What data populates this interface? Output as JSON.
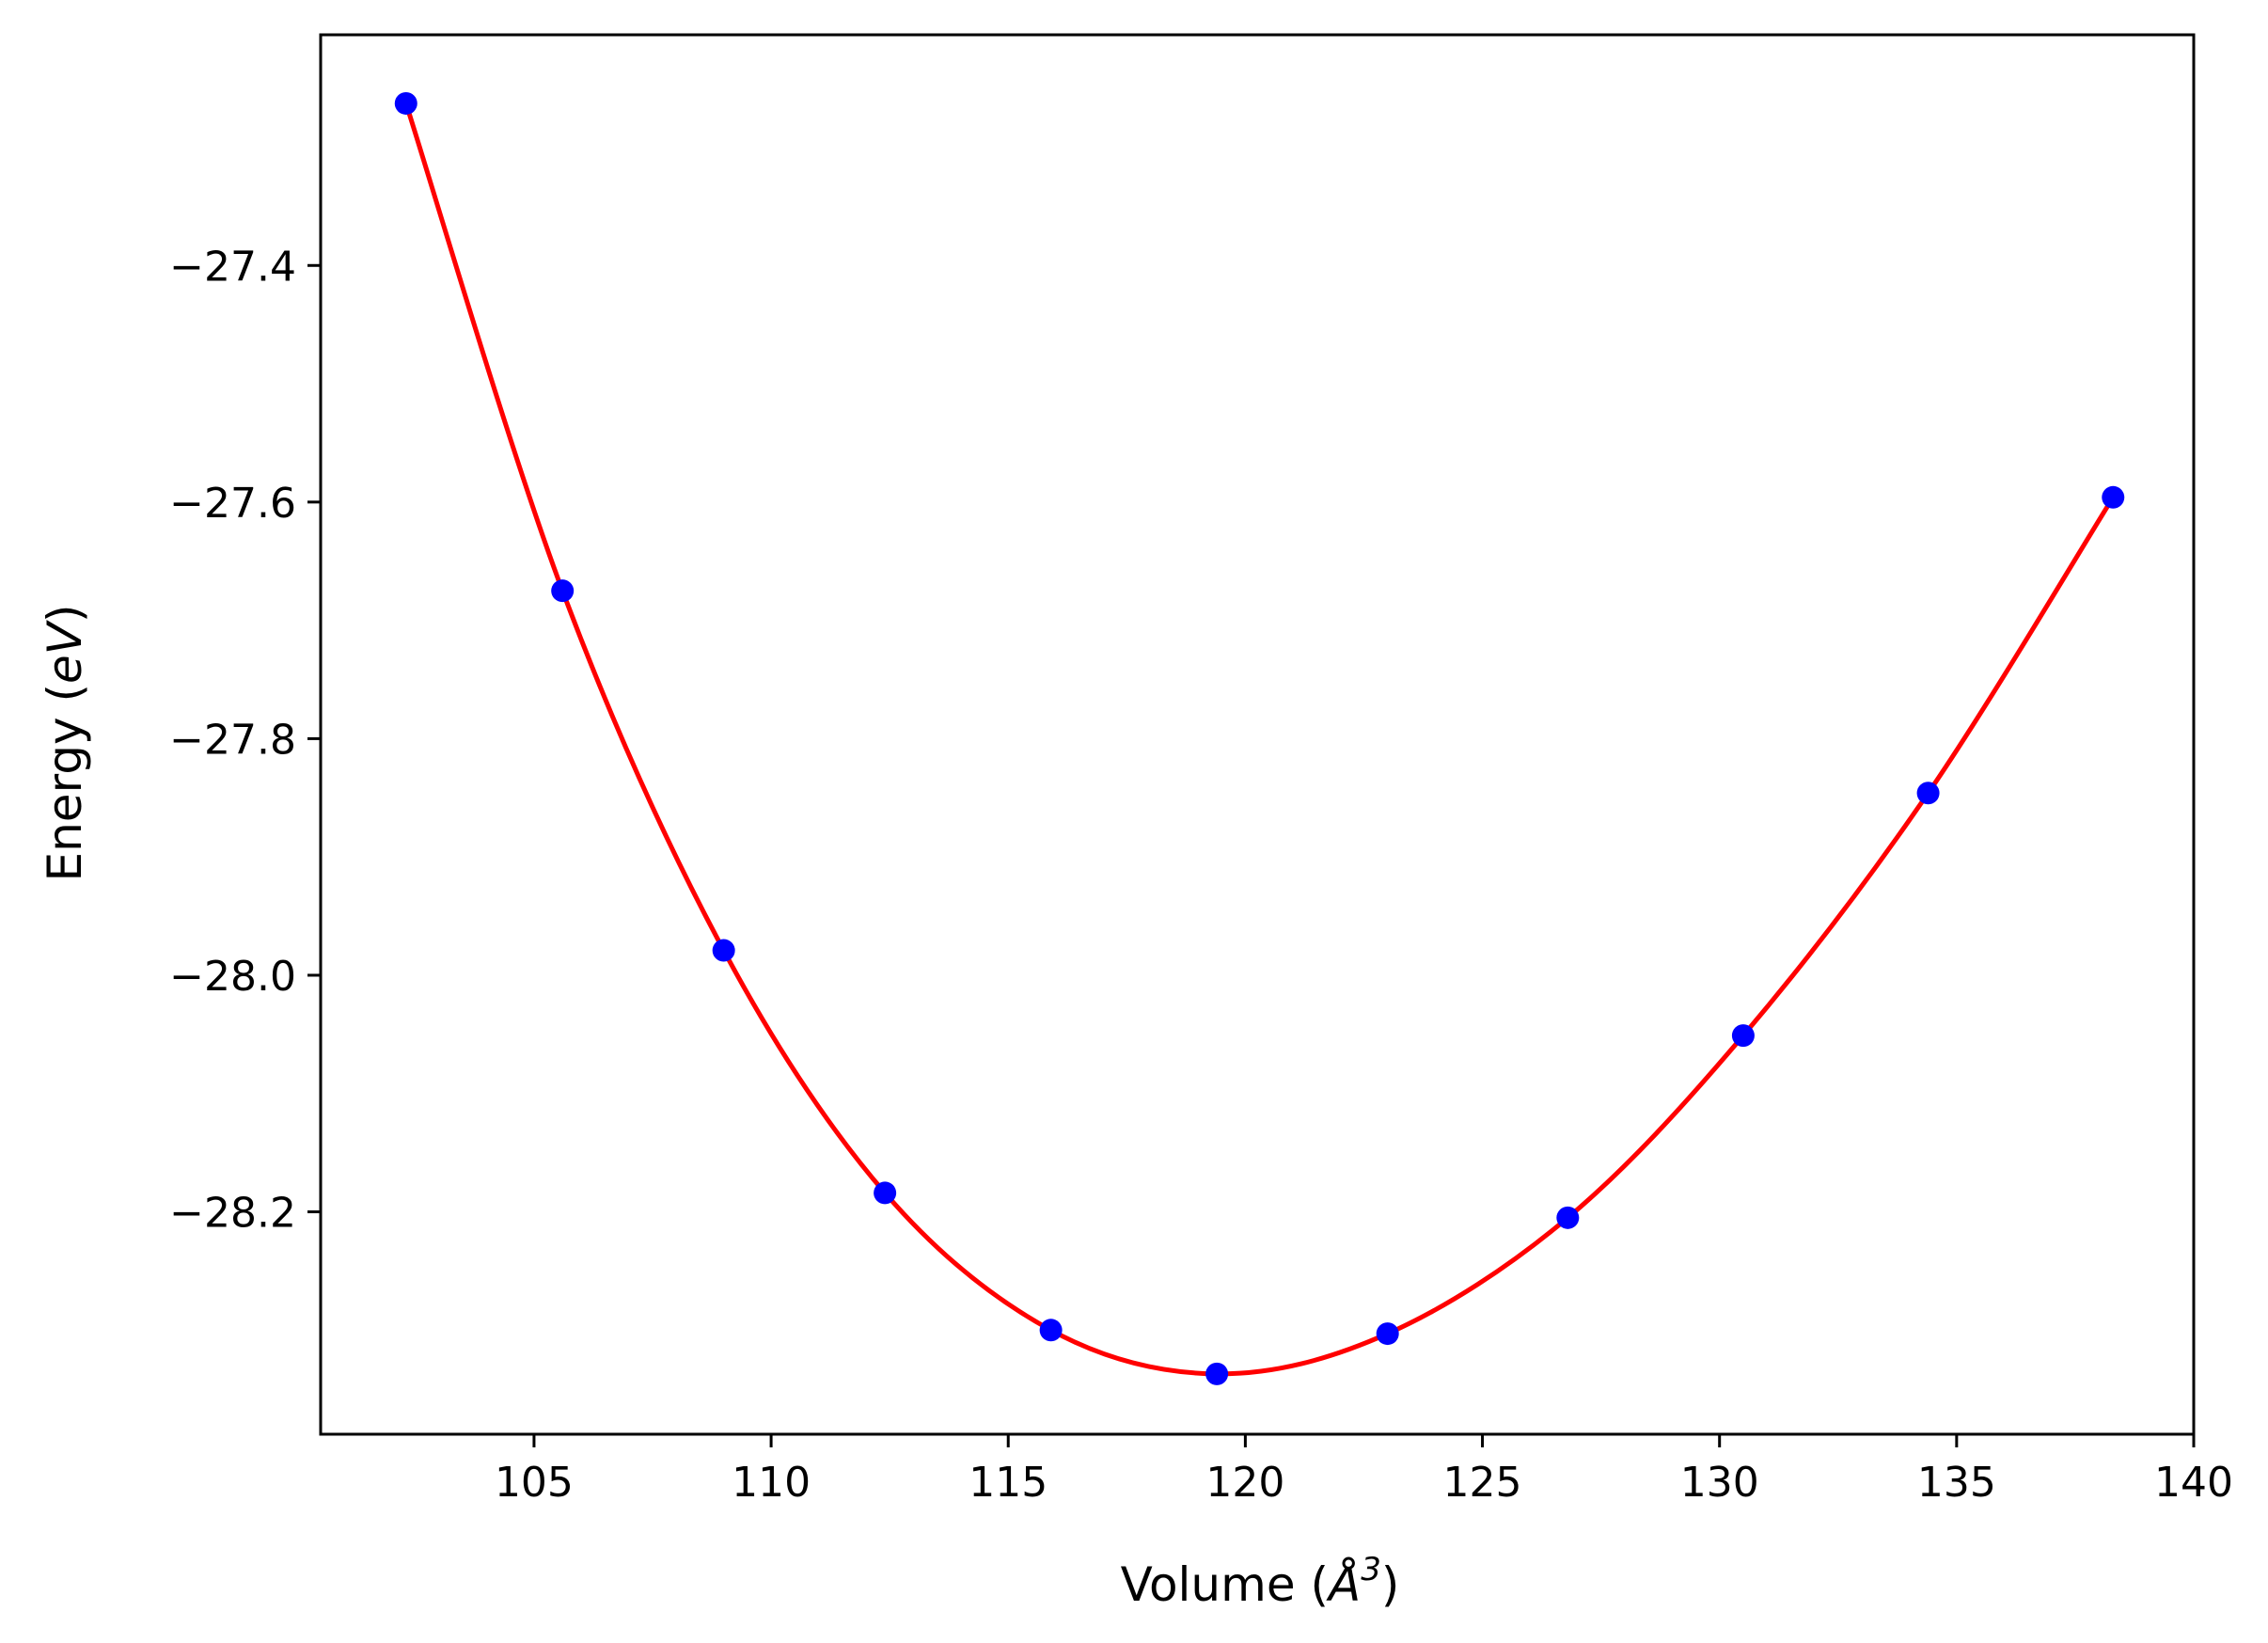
{
  "chart_data": {
    "type": "scatter",
    "title": "",
    "xlabel": {
      "prefix": "Volume (",
      "symbol": "Å",
      "superscript": "3",
      "suffix": ")"
    },
    "ylabel": {
      "prefix": "Energy (",
      "symbol": "eV",
      "suffix": ")"
    },
    "xlim": [
      100.5,
      140.0
    ],
    "ylim": [
      -28.388,
      -27.205
    ],
    "x_ticks": [
      105,
      110,
      115,
      120,
      125,
      130,
      135,
      140
    ],
    "x_tick_labels": [
      "105",
      "110",
      "115",
      "120",
      "125",
      "130",
      "135",
      "140"
    ],
    "y_ticks": [
      -27.4,
      -27.6,
      -27.8,
      -28.0,
      -28.2
    ],
    "y_tick_labels": [
      "−27.4",
      "−27.6",
      "−27.8",
      "−28.0",
      "−28.2"
    ],
    "grid": false,
    "legend": "none",
    "series": [
      {
        "kind": "points",
        "color": "#0000ff",
        "x": [
          102.3,
          105.6,
          109.0,
          112.4,
          115.9,
          119.4,
          123.0,
          126.8,
          130.5,
          134.4,
          138.3
        ],
        "y": [
          -27.263,
          -27.675,
          -27.979,
          -28.184,
          -28.3,
          -28.337,
          -28.303,
          -28.205,
          -28.051,
          -27.846,
          -27.596
        ]
      },
      {
        "kind": "fit_curve",
        "color": "#ff0000",
        "x": [
          102.3,
          105.6,
          109.0,
          112.4,
          115.9,
          119.4,
          123.0,
          126.8,
          130.5,
          134.4,
          138.3
        ],
        "y": [
          -27.263,
          -27.675,
          -27.979,
          -28.184,
          -28.3,
          -28.337,
          -28.303,
          -28.205,
          -28.051,
          -27.846,
          -27.596
        ]
      }
    ]
  }
}
